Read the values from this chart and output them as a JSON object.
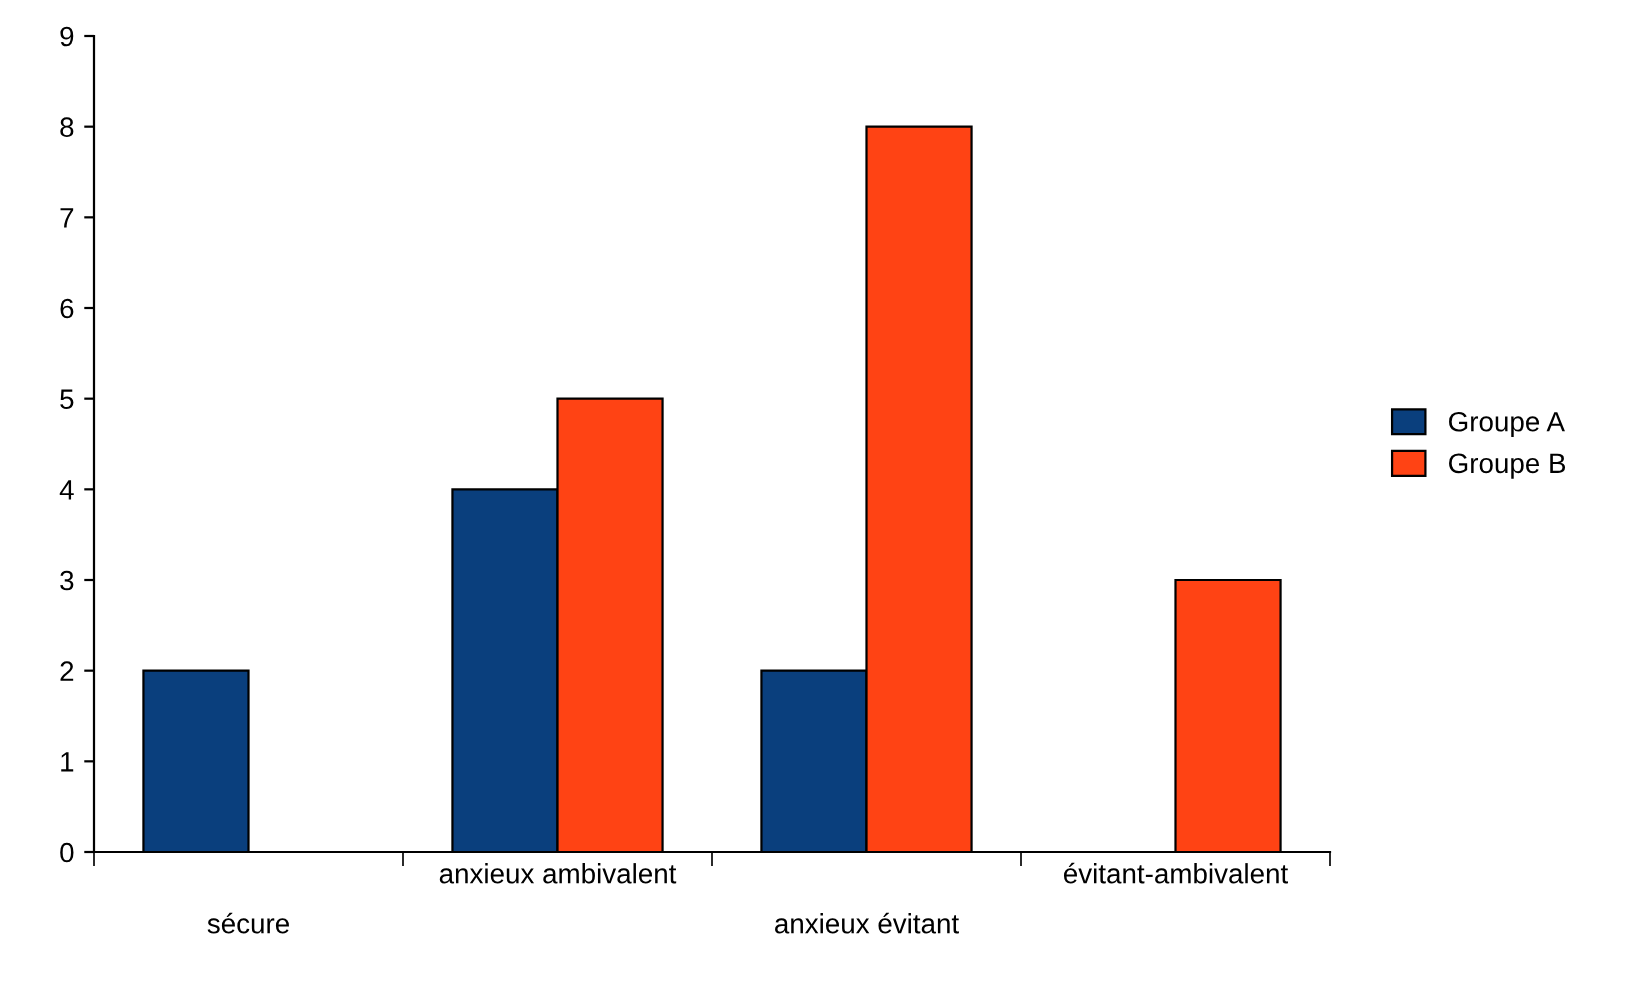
{
  "chart_data": {
    "type": "bar",
    "categories": [
      "sécure",
      "anxieux ambivalent",
      "anxieux évitant",
      "évitant-ambivalent"
    ],
    "series": [
      {
        "name": "Groupe A",
        "color": "#0a3f7d",
        "values": [
          2,
          4,
          2,
          null
        ]
      },
      {
        "name": "Groupe B",
        "color": "#ff4314",
        "values": [
          null,
          5,
          8,
          3
        ]
      }
    ],
    "ylim": [
      0,
      9
    ],
    "yticks": [
      0,
      1,
      2,
      3,
      4,
      5,
      6,
      7,
      8,
      9
    ],
    "grid": false,
    "legend": "right"
  }
}
